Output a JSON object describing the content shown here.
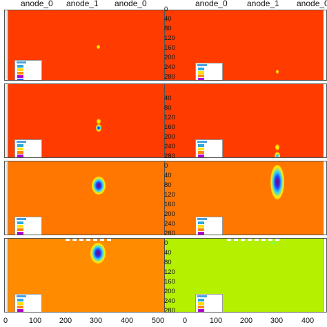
{
  "top_labels": {
    "left_a": "anode_0",
    "center": "anode_1",
    "right_a": "anode_0"
  },
  "right_y_ticks": [
    "0",
    "40",
    "80",
    "120",
    "160",
    "200",
    "240",
    "280"
  ],
  "left_x_ticks": [
    "0",
    "100",
    "200",
    "300",
    "400",
    "500"
  ],
  "right_x_ticks": [
    "0",
    "100",
    "200",
    "300",
    "400"
  ],
  "legend_lines": [
    "······",
    "··········",
    "··········",
    "··········",
    "··········"
  ],
  "colors": {
    "red": "#ff3b00",
    "orange": "#ff7700",
    "amber": "#ff8c00",
    "lime": "#b4f000",
    "legend_cyan": "#2aa8e0",
    "legend_yellow": "#ffe000",
    "legend_orange": "#ff8800",
    "legend_purple": "#b000d0",
    "legend_blue": "#3050ff"
  }
}
